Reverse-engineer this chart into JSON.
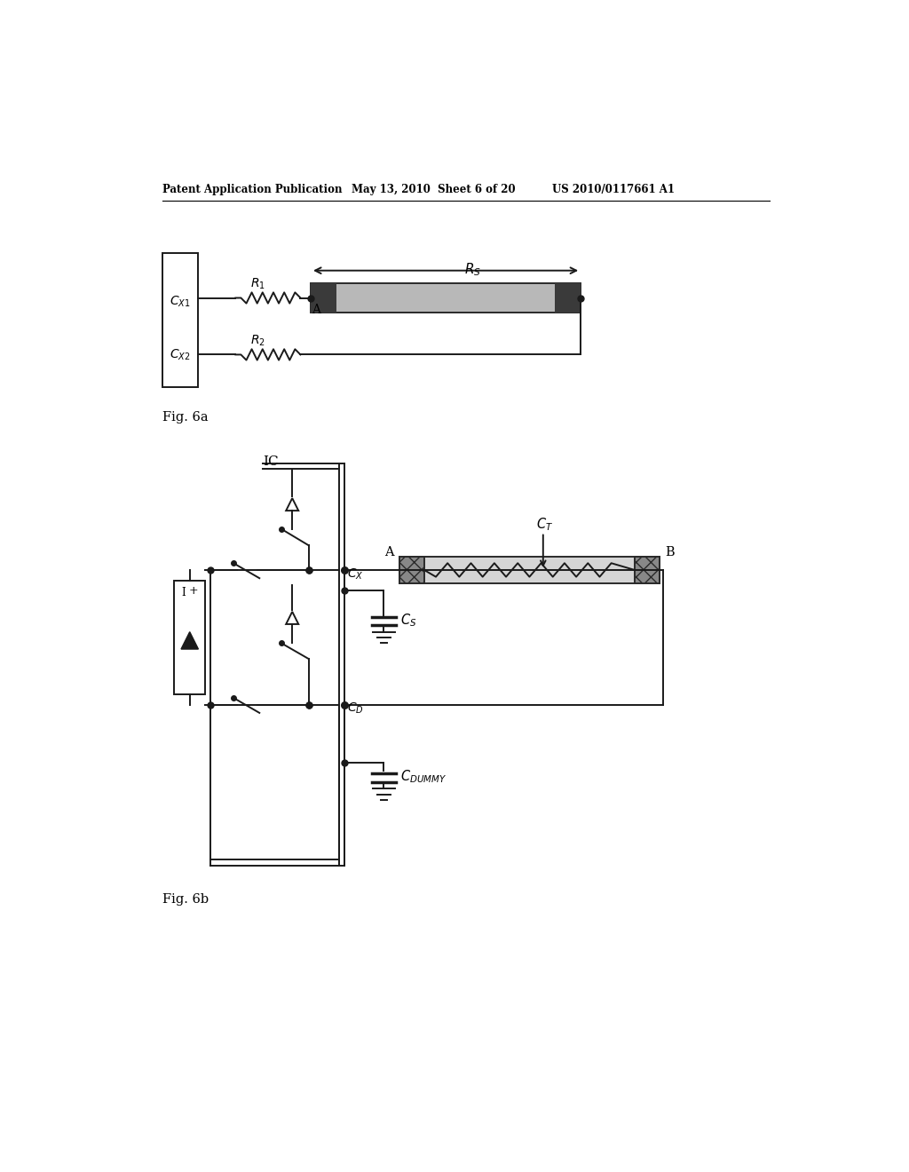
{
  "bg_color": "#ffffff",
  "header_left": "Patent Application Publication",
  "header_center": "May 13, 2010  Sheet 6 of 20",
  "header_right": "US 2010/0117661 A1",
  "fig6a_label": "Fig. 6a",
  "fig6b_label": "Fig. 6b",
  "ic_label": "IC"
}
